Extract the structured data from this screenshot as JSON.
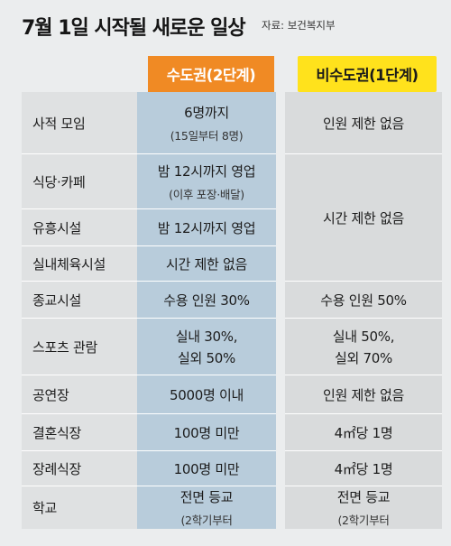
{
  "header": {
    "title": "7월 1일 시작될 새로운 일상",
    "source": "자료: 보건복지부"
  },
  "columns": {
    "metro": "수도권(2단계)",
    "nonmetro": "비수도권(1단계)"
  },
  "colors": {
    "metro_header": "#f08a24",
    "nonmetro_header": "#ffe21c",
    "metro_column": "#b8ccdb"
  },
  "rows": [
    {
      "label": "사적 모임",
      "metro": "6명까지",
      "metro_sub": "(15일부터 8명)",
      "nonmetro": "인원 제한 없음"
    },
    {
      "label": "식당·카페",
      "metro": "밤 12시까지 영업",
      "metro_sub": "(이후 포장·배달)",
      "nonmetro": ""
    },
    {
      "label": "유흥시설",
      "metro": "밤 12시까지 영업",
      "metro_sub": "",
      "nonmetro": ""
    },
    {
      "label": "실내체육시설",
      "metro": "시간 제한 없음",
      "metro_sub": "",
      "nonmetro": ""
    },
    {
      "label": "종교시설",
      "metro": "수용 인원 30%",
      "metro_sub": "",
      "nonmetro": "수용 인원 50%"
    },
    {
      "label": "스포츠 관람",
      "metro": "실내 30%,",
      "metro_sub": "실외 50%",
      "nonmetro": "실내 50%,",
      "nonmetro_sub": "실외 70%"
    },
    {
      "label": "공연장",
      "metro": "5000명 이내",
      "metro_sub": "",
      "nonmetro": "인원 제한 없음"
    },
    {
      "label": "결혼식장",
      "metro": "100명 미만",
      "metro_sub": "",
      "nonmetro": "4㎡당 1명"
    },
    {
      "label": "장례식장",
      "metro": "100명 미만",
      "metro_sub": "",
      "nonmetro": "4㎡당 1명"
    },
    {
      "label": "학교",
      "metro": "전면 등교",
      "metro_sub": "(2학기부터",
      "nonmetro": "전면 등교",
      "nonmetro_sub": "(2학기부터"
    }
  ],
  "merged_nonmetro": "시간 제한 없음"
}
